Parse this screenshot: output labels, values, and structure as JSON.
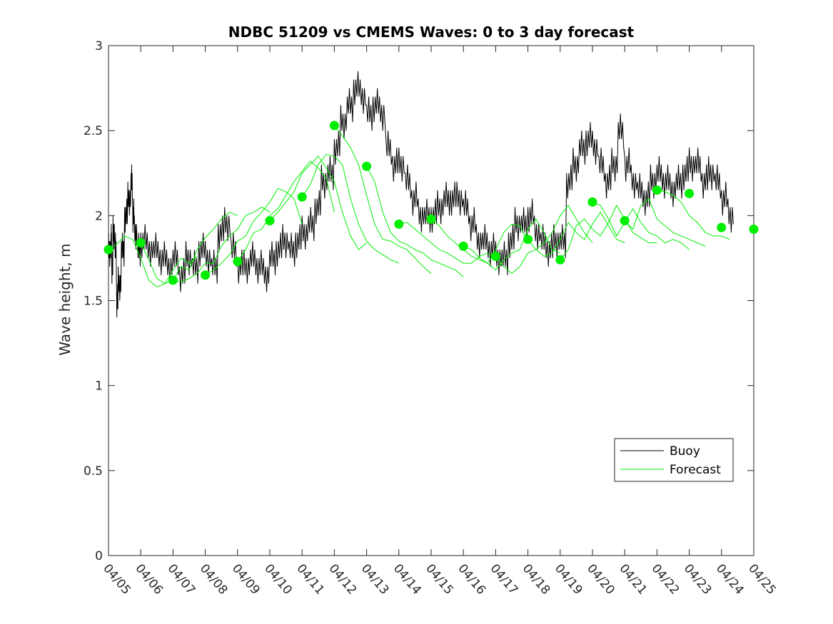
{
  "chart_data": {
    "type": "line",
    "title": "NDBC 51209 vs CMEMS Waves: 0 to 3 day forecast",
    "xlabel": "",
    "ylabel": "Wave height, m",
    "x_tick_labels": [
      "04/05",
      "04/06",
      "04/07",
      "04/08",
      "04/09",
      "04/10",
      "04/11",
      "04/12",
      "04/13",
      "04/14",
      "04/15",
      "04/16",
      "04/17",
      "04/18",
      "04/19",
      "04/20",
      "04/21",
      "04/22",
      "04/23",
      "04/24",
      "04/25"
    ],
    "y_ticks": [
      0,
      0.5,
      1,
      1.5,
      2,
      2.5,
      3
    ],
    "y_tick_labels": [
      "0",
      "0.5",
      "1",
      "1.5",
      "2",
      "2.5",
      "3"
    ],
    "xlim_days": [
      0,
      20
    ],
    "ylim": [
      0,
      3
    ],
    "grid": false,
    "legend": {
      "placement": "bottom-right",
      "entries": [
        "Buoy",
        "Forecast"
      ]
    },
    "colors": {
      "buoy": "#000000",
      "forecast": "#00ee00",
      "axis": "#262626"
    },
    "buoy": {
      "name": "Buoy",
      "x": [
        0,
        0.08,
        0.1,
        0.14,
        0.2,
        0.25,
        0.3,
        0.4,
        0.5,
        0.6,
        0.7,
        0.75,
        0.8,
        0.9,
        1.0,
        1.2,
        1.4,
        1.6,
        1.8,
        2.0,
        2.2,
        2.4,
        2.6,
        2.8,
        3.0,
        3.2,
        3.4,
        3.6,
        3.8,
        4.0,
        4.2,
        4.4,
        4.6,
        4.8,
        5.0,
        5.2,
        5.4,
        5.6,
        5.8,
        6.0,
        6.2,
        6.4,
        6.6,
        6.8,
        7.0,
        7.2,
        7.4,
        7.6,
        7.8,
        8.0,
        8.2,
        8.4,
        8.6,
        8.8,
        9.0,
        9.2,
        9.4,
        9.6,
        9.8,
        10.0,
        10.2,
        10.4,
        10.6,
        10.8,
        11.0,
        11.2,
        11.4,
        11.6,
        11.8,
        12.0,
        12.2,
        12.4,
        12.6,
        12.8,
        13.0,
        13.2,
        13.4,
        13.6,
        13.8,
        14.0,
        14.2,
        14.4,
        14.6,
        14.8,
        15.0,
        15.2,
        15.4,
        15.6,
        15.8,
        16.0,
        16.2,
        16.4,
        16.6,
        16.8,
        17.0,
        17.2,
        17.4,
        17.6,
        17.8,
        18.0,
        18.2,
        18.4,
        18.6,
        18.8,
        19.0,
        19.2
      ],
      "values": [
        1.8,
        1.85,
        1.7,
        1.9,
        1.8,
        1.5,
        1.6,
        1.8,
        2.0,
        2.1,
        2.2,
        2.0,
        1.9,
        1.8,
        1.85,
        1.8,
        1.8,
        1.75,
        1.7,
        1.75,
        1.65,
        1.75,
        1.7,
        1.8,
        1.75,
        1.7,
        1.9,
        1.95,
        1.8,
        1.7,
        1.7,
        1.75,
        1.7,
        1.65,
        1.75,
        1.8,
        1.85,
        1.8,
        1.85,
        1.9,
        1.95,
        2.05,
        2.2,
        2.25,
        2.4,
        2.55,
        2.65,
        2.75,
        2.7,
        2.6,
        2.65,
        2.6,
        2.4,
        2.3,
        2.3,
        2.2,
        2.1,
        2.0,
        2.0,
        2.0,
        2.05,
        2.1,
        2.1,
        2.1,
        2.05,
        1.95,
        1.85,
        1.85,
        1.8,
        1.75,
        1.75,
        1.85,
        1.95,
        1.95,
        2.0,
        1.9,
        1.85,
        1.8,
        1.85,
        1.85,
        2.2,
        2.3,
        2.4,
        2.45,
        2.4,
        2.3,
        2.2,
        2.3,
        2.5,
        2.3,
        2.2,
        2.15,
        2.1,
        2.2,
        2.25,
        2.2,
        2.15,
        2.2,
        2.25,
        2.3,
        2.3,
        2.2,
        2.25,
        2.2,
        2.1,
        2.0
      ]
    },
    "forecast_runs": [
      {
        "start": 0,
        "values": [
          1.8,
          1.83,
          1.88,
          1.86,
          1.75,
          1.62,
          1.58,
          1.6,
          1.68,
          1.75,
          1.72,
          1.76
        ]
      },
      {
        "start": 1,
        "values": [
          1.84,
          1.74,
          1.63,
          1.6,
          1.62,
          1.7,
          1.68,
          1.8,
          1.87,
          1.92,
          1.98,
          2.02,
          2.0
        ]
      },
      {
        "start": 2,
        "values": [
          1.62,
          1.61,
          1.63,
          1.66,
          1.72,
          1.72,
          1.82,
          1.88,
          1.92,
          2.0,
          2.02,
          2.05,
          2.02
        ]
      },
      {
        "start": 3,
        "values": [
          1.65,
          1.68,
          1.72,
          1.77,
          1.85,
          1.88,
          1.97,
          2.02,
          2.08,
          2.16,
          2.14,
          2.1,
          1.95
        ]
      },
      {
        "start": 4,
        "values": [
          1.73,
          1.8,
          1.9,
          1.92,
          2.0,
          2.04,
          2.12,
          2.2,
          2.26,
          2.32,
          2.28,
          2.22,
          2.02
        ]
      },
      {
        "start": 5,
        "values": [
          1.97,
          2.02,
          2.08,
          2.14,
          2.25,
          2.3,
          2.35,
          2.28,
          2.2,
          2.02,
          1.88,
          1.8,
          1.84
        ]
      },
      {
        "start": 6,
        "values": [
          2.11,
          2.18,
          2.3,
          2.36,
          2.35,
          2.3,
          2.1,
          1.95,
          1.85,
          1.8,
          1.77,
          1.74,
          1.72
        ]
      },
      {
        "start": 7,
        "values": [
          2.53,
          2.47,
          2.4,
          2.3,
          2.12,
          1.95,
          1.86,
          1.85,
          1.82,
          1.8,
          1.75,
          1.7,
          1.66
        ]
      },
      {
        "start": 8,
        "values": [
          2.29,
          2.2,
          2.02,
          1.9,
          1.85,
          1.83,
          1.8,
          1.78,
          1.74,
          1.72,
          1.7,
          1.68,
          1.64
        ]
      },
      {
        "start": 9,
        "values": [
          1.95,
          1.96,
          1.92,
          1.88,
          1.84,
          1.8,
          1.78,
          1.75,
          1.72,
          1.72,
          1.76,
          1.78,
          1.74
        ]
      },
      {
        "start": 10,
        "values": [
          1.98,
          1.94,
          1.88,
          1.84,
          1.8,
          1.76,
          1.74,
          1.72,
          1.8,
          1.9,
          1.95,
          1.94,
          1.84
        ]
      },
      {
        "start": 11,
        "values": [
          1.82,
          1.8,
          1.75,
          1.72,
          1.68,
          1.74,
          1.78,
          1.8,
          1.92,
          1.98,
          1.9,
          1.8,
          1.78
        ]
      },
      {
        "start": 12,
        "values": [
          1.76,
          1.7,
          1.66,
          1.7,
          1.78,
          1.8,
          1.84,
          1.9,
          2.0,
          2.06,
          1.98,
          1.9,
          1.84
        ]
      },
      {
        "start": 13,
        "values": [
          1.86,
          1.8,
          1.76,
          1.78,
          1.86,
          1.96,
          1.9,
          1.86,
          1.95,
          2.02,
          1.94,
          1.86,
          1.84
        ]
      },
      {
        "start": 14,
        "values": [
          1.74,
          1.8,
          1.94,
          1.98,
          1.92,
          1.88,
          1.96,
          2.06,
          1.98,
          1.9,
          1.87,
          1.84,
          1.84
        ]
      },
      {
        "start": 15,
        "values": [
          2.08,
          2.06,
          1.98,
          1.88,
          1.96,
          2.04,
          1.96,
          1.9,
          1.88,
          1.84,
          1.86,
          1.84,
          1.8
        ]
      },
      {
        "start": 16,
        "values": [
          1.97,
          1.92,
          2.06,
          2.1,
          1.98,
          1.94,
          1.9,
          1.88,
          1.86,
          1.84,
          1.82
        ]
      },
      {
        "start": 17,
        "values": [
          2.15,
          2.14,
          2.12,
          2.08,
          2.0,
          1.96,
          1.9,
          1.88,
          1.88,
          1.86
        ]
      }
    ],
    "analysis_points": {
      "name": "",
      "x": [
        0,
        1,
        2,
        3,
        4,
        5,
        6,
        7,
        8,
        9,
        10,
        11,
        12,
        13,
        14,
        15,
        16,
        17,
        18,
        19,
        20
      ],
      "values": [
        1.8,
        1.84,
        1.62,
        1.65,
        1.73,
        1.97,
        2.11,
        2.53,
        2.29,
        1.95,
        1.98,
        1.82,
        1.76,
        1.86,
        1.74,
        2.08,
        1.97,
        2.15,
        2.13,
        1.93,
        1.92
      ]
    }
  }
}
